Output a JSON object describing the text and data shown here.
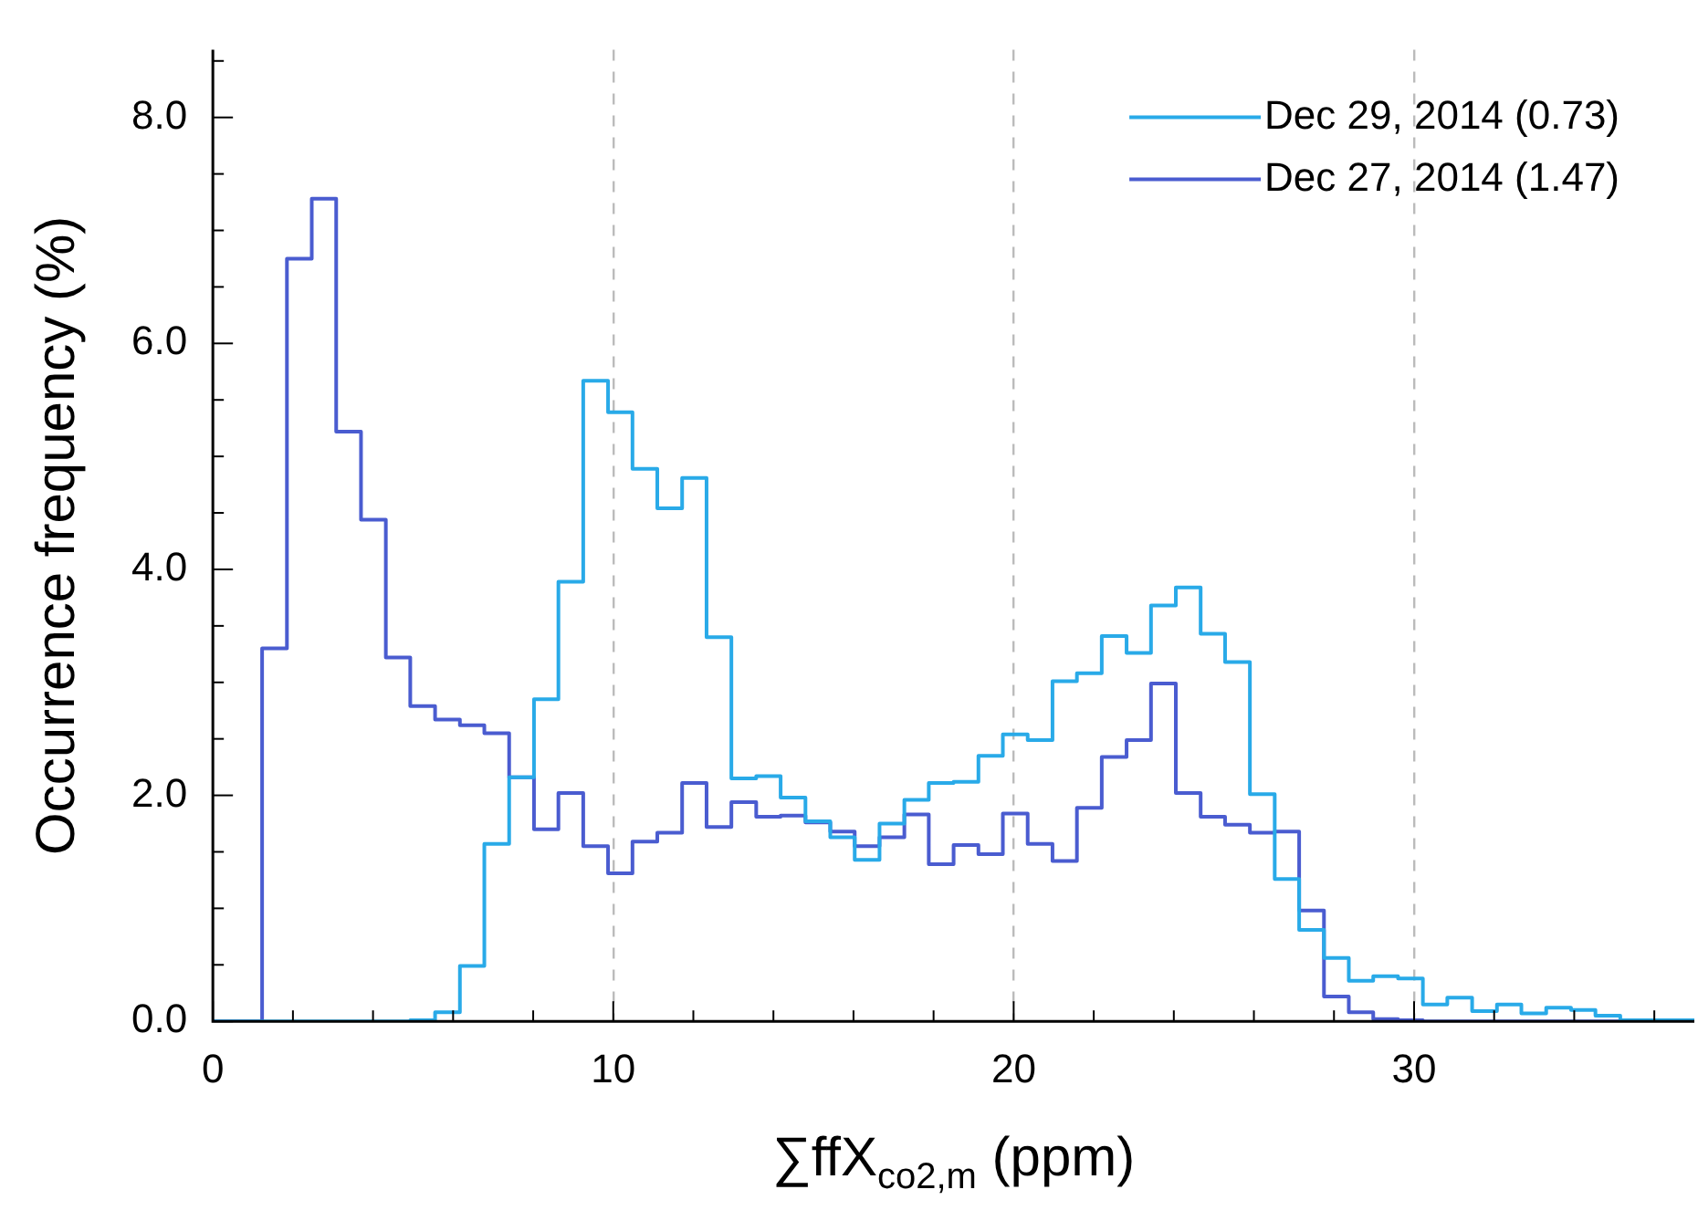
{
  "chart_data": {
    "type": "histogram",
    "xlabel": "∑ffX$_{co2,m}$ (ppm)",
    "ylabel": "Occurrence frequency (%)",
    "bins": [
      0,
      0.62,
      1.23,
      1.85,
      2.47,
      3.08,
      3.7,
      4.32,
      4.93,
      5.55,
      6.17,
      6.78,
      7.4,
      8.02,
      8.63,
      9.25,
      9.87,
      10.48,
      11.1,
      11.72,
      12.33,
      12.95,
      13.57,
      14.18,
      14.8,
      15.42,
      16.03,
      16.65,
      17.27,
      17.88,
      18.5,
      19.12,
      19.73,
      20.35,
      20.97,
      21.58,
      22.2,
      22.82,
      23.43,
      24.05,
      24.67,
      25.28,
      25.9,
      26.52,
      27.13,
      27.75,
      28.37,
      28.98,
      29.6,
      30.22,
      30.83,
      31.45,
      32.07,
      32.68,
      33.3,
      33.92,
      34.53,
      35.15,
      35.77,
      36.38,
      37
    ],
    "series": [
      {
        "name": "Dec 29, 2014 (0.73)",
        "color": "#29aae8",
        "values": [
          0,
          0,
          0,
          0,
          0,
          0,
          0,
          0,
          0.01,
          0.08,
          0.49,
          1.57,
          2.16,
          2.85,
          3.89,
          5.67,
          5.39,
          4.89,
          4.54,
          4.81,
          3.4,
          2.15,
          2.17,
          1.98,
          1.77,
          1.63,
          1.43,
          1.75,
          1.96,
          2.11,
          2.12,
          2.35,
          2.54,
          2.49,
          3.01,
          3.08,
          3.41,
          3.26,
          3.68,
          3.84,
          3.43,
          3.18,
          2.01,
          1.26,
          0.81,
          0.56,
          0.36,
          0.4,
          0.38,
          0.15,
          0.21,
          0.09,
          0.15,
          0.07,
          0.12,
          0.1,
          0.05,
          0.01,
          0.01,
          0.01
        ]
      },
      {
        "name": "Dec 27, 2014 (1.47)",
        "color": "#4a5cd0",
        "values": [
          0,
          0,
          3.3,
          6.75,
          7.28,
          5.22,
          4.44,
          3.22,
          2.79,
          2.67,
          2.62,
          2.55,
          2.16,
          1.7,
          2.02,
          1.55,
          1.31,
          1.59,
          1.67,
          2.11,
          1.72,
          1.94,
          1.81,
          1.82,
          1.76,
          1.68,
          1.55,
          1.63,
          1.83,
          1.39,
          1.56,
          1.48,
          1.84,
          1.57,
          1.42,
          1.89,
          2.34,
          2.49,
          2.99,
          2.02,
          1.81,
          1.74,
          1.67,
          1.68,
          0.98,
          0.22,
          0.08,
          0.02,
          0.01,
          0,
          0,
          0,
          0,
          0,
          0,
          0,
          0,
          0,
          0,
          0
        ]
      }
    ],
    "xlim": [
      0,
      37
    ],
    "xticks": [
      0,
      {
        "value": 2,
        "label": null
      },
      {
        "value": 4,
        "label": null
      },
      {
        "value": 6,
        "label": null
      },
      {
        "value": 8,
        "label": null
      },
      10,
      {
        "value": 12,
        "label": null
      },
      {
        "value": 14,
        "label": null
      },
      {
        "value": 16,
        "label": null
      },
      {
        "value": 18,
        "label": null
      },
      20,
      {
        "value": 22,
        "label": null
      },
      {
        "value": 24,
        "label": null
      },
      {
        "value": 26,
        "label": null
      },
      {
        "value": 28,
        "label": null
      },
      30,
      {
        "value": 32,
        "label": null
      },
      {
        "value": 34,
        "label": null
      },
      {
        "value": 36,
        "label": null
      }
    ],
    "ylim": [
      0,
      8.6
    ],
    "yticks": [
      {
        "value": 0,
        "label": "0.0"
      },
      {
        "value": 0.5,
        "label": null
      },
      {
        "value": 1,
        "label": null
      },
      {
        "value": 1.5,
        "label": null
      },
      {
        "value": 2,
        "label": "2.0"
      },
      {
        "value": 2.5,
        "label": null
      },
      {
        "value": 3,
        "label": null
      },
      {
        "value": 3.5,
        "label": null
      },
      {
        "value": 4,
        "label": "4.0"
      },
      {
        "value": 4.5,
        "label": null
      },
      {
        "value": 5,
        "label": null
      },
      {
        "value": 5.5,
        "label": null
      },
      {
        "value": 6,
        "label": "6.0"
      },
      {
        "value": 6.5,
        "label": null
      },
      {
        "value": 7,
        "label": null
      },
      {
        "value": 7.5,
        "label": null
      },
      {
        "value": 8,
        "label": "8.0"
      },
      {
        "value": 8.5,
        "label": null
      }
    ],
    "grid": "x",
    "legend": "top right"
  }
}
